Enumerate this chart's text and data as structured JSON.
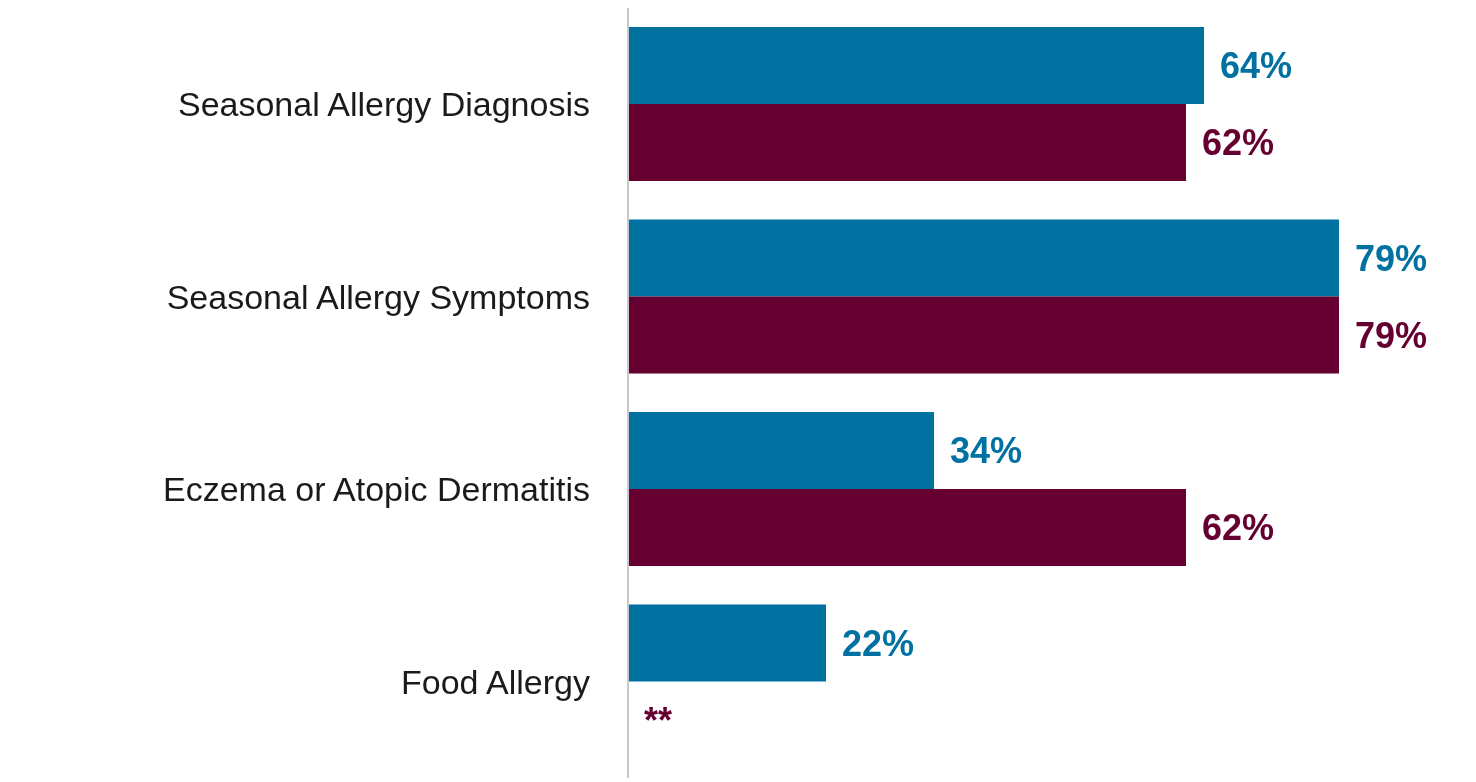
{
  "chart_data": {
    "type": "bar",
    "orientation": "horizontal",
    "categories": [
      "Seasonal Allergy Diagnosis",
      "Seasonal Allergy Symptoms",
      "Eczema or Atopic Dermatitis",
      "Food Allergy"
    ],
    "series": [
      {
        "color": "#0071a1",
        "values": [
          64,
          79,
          34,
          22
        ],
        "value_labels": [
          "64%",
          "79%",
          "34%",
          "22%"
        ]
      },
      {
        "color": "#650030",
        "values": [
          62,
          79,
          62,
          null
        ],
        "value_labels": [
          "62%",
          "79%",
          "62%",
          "**"
        ]
      }
    ],
    "tick_labels": "y",
    "grid": false,
    "legend": false
  }
}
